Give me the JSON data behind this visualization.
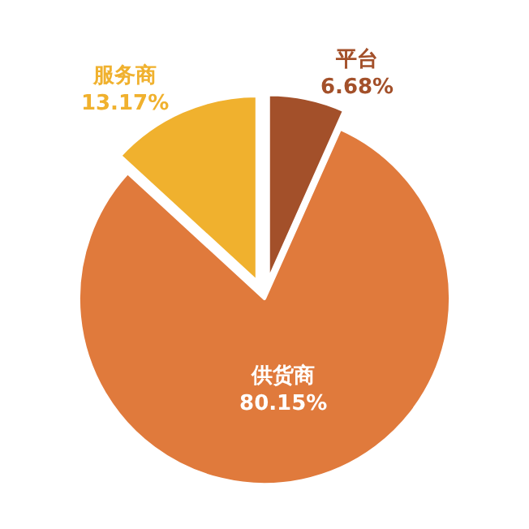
{
  "chart_data": {
    "type": "pie",
    "categories": [
      "平台",
      "供货商",
      "服务商"
    ],
    "values": [
      6.68,
      80.15,
      13.17
    ],
    "value_labels": [
      "6.68%",
      "80.15%",
      "13.17%"
    ],
    "colors": [
      "#a3502a",
      "#e07a3c",
      "#f0b12e"
    ]
  }
}
